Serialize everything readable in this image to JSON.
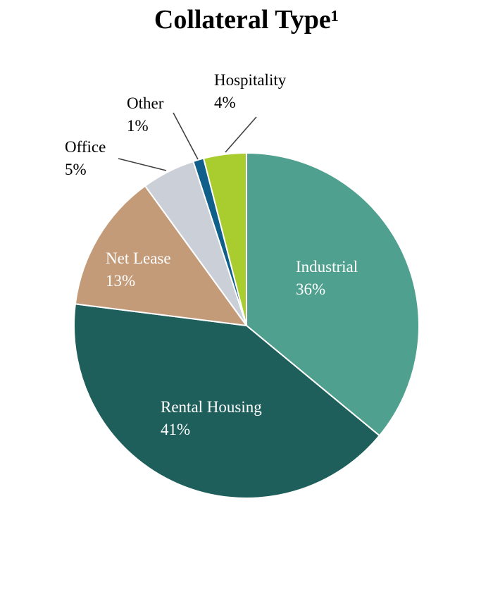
{
  "chart_data": {
    "type": "pie",
    "title": "Collateral Type¹",
    "slices": [
      {
        "name": "Industrial",
        "value": 36,
        "label": "36%",
        "color": "#4fa08e",
        "label_color": "#ffffff",
        "placement": "inside"
      },
      {
        "name": "Rental Housing",
        "value": 41,
        "label": "41%",
        "color": "#1e5e5b",
        "label_color": "#ffffff",
        "placement": "inside"
      },
      {
        "name": "Net Lease",
        "value": 13,
        "label": "13%",
        "color": "#c49b78",
        "label_color": "#ffffff",
        "placement": "inside"
      },
      {
        "name": "Office",
        "value": 5,
        "label": "5%",
        "color": "#cbd0d8",
        "label_color": "#000000",
        "placement": "outside"
      },
      {
        "name": "Other",
        "value": 1,
        "label": "1%",
        "color": "#0f5f8a",
        "label_color": "#000000",
        "placement": "outside"
      },
      {
        "name": "Hospitality",
        "value": 4,
        "label": "4%",
        "color": "#a9cc2e",
        "label_color": "#000000",
        "placement": "outside"
      }
    ],
    "start": "12 o'clock",
    "direction": "clockwise",
    "legend": "none"
  }
}
